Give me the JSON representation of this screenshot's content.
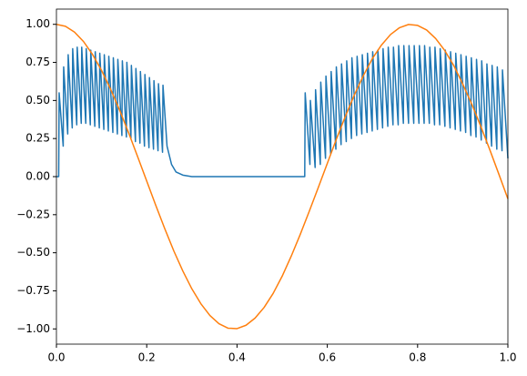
{
  "chart_data": {
    "type": "line",
    "xlim": [
      0,
      1
    ],
    "ylim": [
      -1.1,
      1.1
    ],
    "xticks": [
      {
        "value": 0,
        "label": "0.0"
      },
      {
        "value": 0.2,
        "label": "0.2"
      },
      {
        "value": 0.4,
        "label": "0.4"
      },
      {
        "value": 0.6,
        "label": "0.6"
      },
      {
        "value": 0.8,
        "label": "0.8"
      },
      {
        "value": 1,
        "label": "1.0"
      }
    ],
    "yticks": [
      {
        "value": -1,
        "label": "−1.00"
      },
      {
        "value": -0.75,
        "label": "−0.75"
      },
      {
        "value": -0.5,
        "label": "−0.50"
      },
      {
        "value": -0.25,
        "label": "−0.25"
      },
      {
        "value": 0,
        "label": "0.00"
      },
      {
        "value": 0.25,
        "label": "0.25"
      },
      {
        "value": 0.5,
        "label": "0.50"
      },
      {
        "value": 0.75,
        "label": "0.75"
      },
      {
        "value": 1,
        "label": "1.00"
      }
    ],
    "series": [
      {
        "color": "#1f77b4",
        "x": [
          0,
          0.005,
          0.006,
          0.015,
          0.016,
          0.025,
          0.026,
          0.035,
          0.036,
          0.045,
          0.046,
          0.055,
          0.056,
          0.065,
          0.066,
          0.075,
          0.076,
          0.085,
          0.086,
          0.095,
          0.096,
          0.105,
          0.106,
          0.115,
          0.116,
          0.125,
          0.126,
          0.135,
          0.136,
          0.145,
          0.146,
          0.155,
          0.156,
          0.165,
          0.166,
          0.175,
          0.176,
          0.185,
          0.186,
          0.195,
          0.196,
          0.205,
          0.206,
          0.215,
          0.216,
          0.225,
          0.226,
          0.235,
          0.236,
          0.245,
          0.255,
          0.265,
          0.28,
          0.3,
          0.55,
          0.551,
          0.5615,
          0.5625,
          0.573,
          0.574,
          0.5845,
          0.5855,
          0.596,
          0.597,
          0.6075,
          0.6085,
          0.619,
          0.62,
          0.6305,
          0.6315,
          0.642,
          0.643,
          0.6535,
          0.6545,
          0.665,
          0.666,
          0.6765,
          0.6775,
          0.688,
          0.689,
          0.6995,
          0.7005,
          0.711,
          0.712,
          0.7225,
          0.7235,
          0.734,
          0.735,
          0.7455,
          0.7465,
          0.757,
          0.758,
          0.7685,
          0.7695,
          0.78,
          0.781,
          0.7915,
          0.7925,
          0.803,
          0.804,
          0.8145,
          0.8155,
          0.826,
          0.827,
          0.8375,
          0.8385,
          0.849,
          0.85,
          0.8605,
          0.8615,
          0.872,
          0.873,
          0.8835,
          0.8845,
          0.895,
          0.896,
          0.9065,
          0.9075,
          0.918,
          0.919,
          0.9295,
          0.9305,
          0.941,
          0.942,
          0.9525,
          0.9535,
          0.964,
          0.965,
          0.9755,
          0.9765,
          0.987,
          0.988,
          1.0
        ],
        "values": [
          0,
          0,
          0.55,
          0.2,
          0.72,
          0.28,
          0.8,
          0.32,
          0.84,
          0.34,
          0.85,
          0.35,
          0.85,
          0.35,
          0.84,
          0.34,
          0.83,
          0.33,
          0.82,
          0.32,
          0.81,
          0.31,
          0.8,
          0.3,
          0.79,
          0.29,
          0.78,
          0.28,
          0.77,
          0.27,
          0.76,
          0.26,
          0.75,
          0.25,
          0.73,
          0.23,
          0.71,
          0.22,
          0.69,
          0.2,
          0.67,
          0.19,
          0.65,
          0.18,
          0.63,
          0.17,
          0.61,
          0.16,
          0.6,
          0.2,
          0.08,
          0.03,
          0.01,
          0,
          0,
          0.55,
          0.08,
          0.5,
          0.06,
          0.57,
          0.08,
          0.62,
          0.12,
          0.66,
          0.15,
          0.69,
          0.18,
          0.72,
          0.21,
          0.74,
          0.23,
          0.76,
          0.25,
          0.78,
          0.27,
          0.79,
          0.28,
          0.8,
          0.29,
          0.81,
          0.3,
          0.82,
          0.31,
          0.83,
          0.32,
          0.84,
          0.33,
          0.85,
          0.34,
          0.85,
          0.34,
          0.86,
          0.35,
          0.86,
          0.35,
          0.86,
          0.35,
          0.86,
          0.35,
          0.86,
          0.35,
          0.86,
          0.35,
          0.85,
          0.34,
          0.85,
          0.34,
          0.84,
          0.33,
          0.83,
          0.32,
          0.82,
          0.31,
          0.81,
          0.3,
          0.8,
          0.29,
          0.79,
          0.27,
          0.78,
          0.26,
          0.77,
          0.24,
          0.76,
          0.22,
          0.74,
          0.2,
          0.73,
          0.18,
          0.72,
          0.17,
          0.7,
          0.12
        ]
      },
      {
        "color": "#ff7f0e",
        "x": [
          0,
          0.02,
          0.04,
          0.06,
          0.08,
          0.1,
          0.12,
          0.14,
          0.16,
          0.18,
          0.2,
          0.22,
          0.24,
          0.26,
          0.28,
          0.3,
          0.32,
          0.34,
          0.36,
          0.38,
          0.4,
          0.42,
          0.44,
          0.46,
          0.48,
          0.5,
          0.52,
          0.54,
          0.56,
          0.58,
          0.6,
          0.62,
          0.64,
          0.66,
          0.68,
          0.7,
          0.72,
          0.74,
          0.76,
          0.78,
          0.8,
          0.82,
          0.84,
          0.86,
          0.88,
          0.9,
          0.92,
          0.94,
          0.96,
          0.98,
          1.0
        ],
        "values": [
          1,
          0.987,
          0.949,
          0.887,
          0.802,
          0.697,
          0.574,
          0.436,
          0.287,
          0.13,
          -0.029,
          -0.188,
          -0.342,
          -0.488,
          -0.62,
          -0.737,
          -0.835,
          -0.912,
          -0.966,
          -0.995,
          -0.998,
          -0.976,
          -0.929,
          -0.859,
          -0.767,
          -0.654,
          -0.523,
          -0.38,
          -0.228,
          -0.072,
          0.087,
          0.245,
          0.396,
          0.537,
          0.664,
          0.776,
          0.864,
          0.933,
          0.978,
          0.999,
          0.993,
          0.963,
          0.907,
          0.829,
          0.73,
          0.608,
          0.476,
          0.33,
          0.176,
          0.016,
          -0.146
        ]
      }
    ]
  }
}
